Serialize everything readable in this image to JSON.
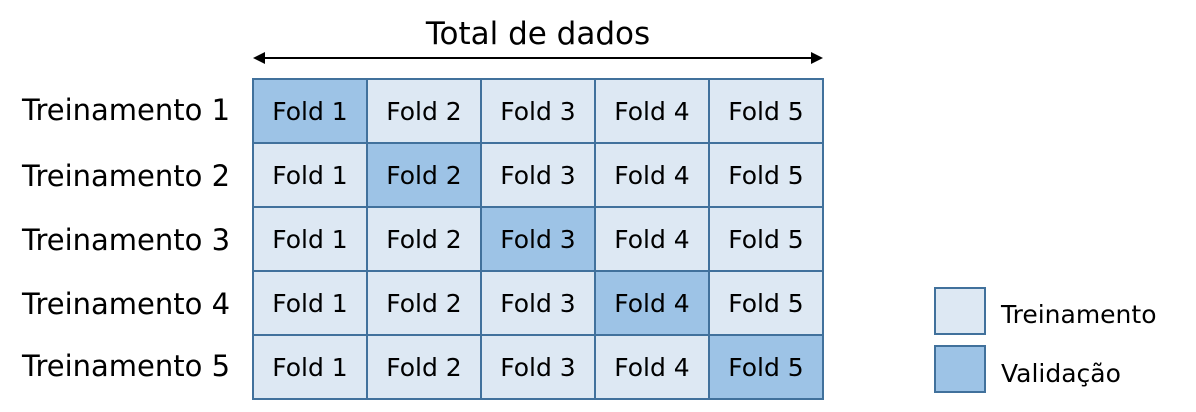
{
  "title": "Total de dados",
  "rows": [
    {
      "label": "Treinamento 1",
      "folds": [
        "Fold 1",
        "Fold 2",
        "Fold 3",
        "Fold 4",
        "Fold 5"
      ],
      "validation_fold": 1
    },
    {
      "label": "Treinamento 2",
      "folds": [
        "Fold 1",
        "Fold 2",
        "Fold 3",
        "Fold 4",
        "Fold 5"
      ],
      "validation_fold": 2
    },
    {
      "label": "Treinamento 3",
      "folds": [
        "Fold 1",
        "Fold 2",
        "Fold 3",
        "Fold 4",
        "Fold 5"
      ],
      "validation_fold": 3
    },
    {
      "label": "Treinamento 4",
      "folds": [
        "Fold 1",
        "Fold 2",
        "Fold 3",
        "Fold 4",
        "Fold 5"
      ],
      "validation_fold": 4
    },
    {
      "label": "Treinamento 5",
      "folds": [
        "Fold 1",
        "Fold 2",
        "Fold 3",
        "Fold 4",
        "Fold 5"
      ],
      "validation_fold": 5
    }
  ],
  "legend": {
    "training": "Treinamento",
    "validation": "Validação"
  },
  "colors": {
    "training": "#dde8f3",
    "validation": "#9dc3e6",
    "border": "#41719c"
  }
}
